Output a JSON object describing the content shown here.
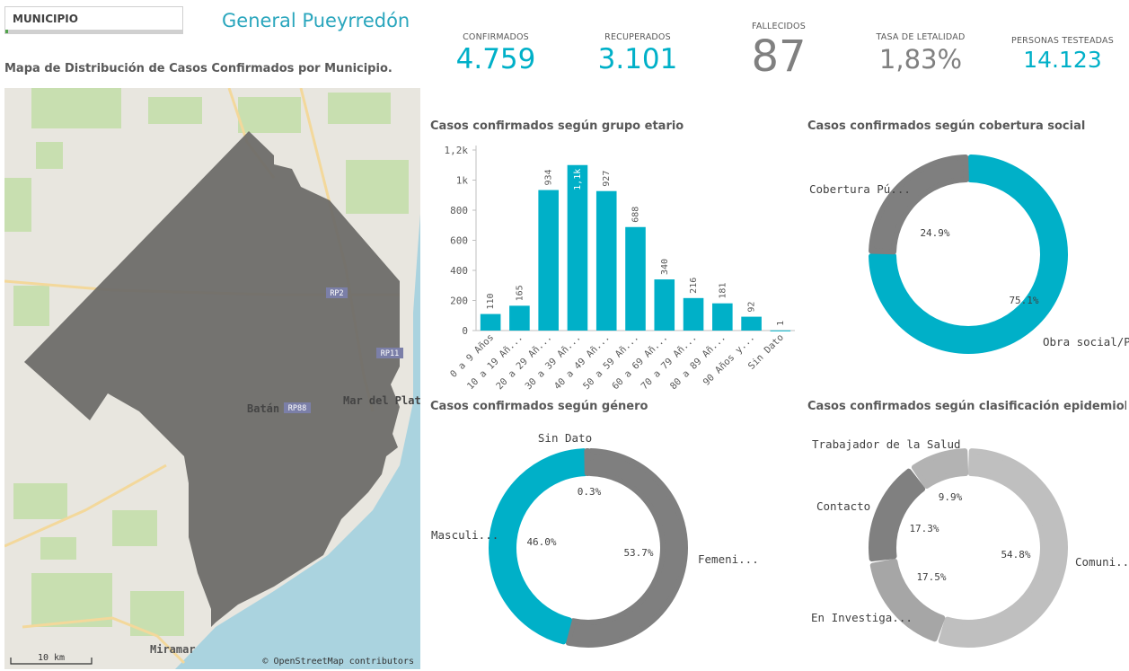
{
  "filter": {
    "label": "MUNICIPIO"
  },
  "municipio": "General Pueyrredón",
  "map": {
    "title": "Mapa de Distribución de Casos Confirmados por Municipio.",
    "labels": {
      "rp2": "RP2",
      "rp11": "RP11",
      "rp88": "RP88",
      "batan": "Batán",
      "mdp": "Mar del Plata",
      "miramar": "Miramar"
    },
    "scale": "10 km",
    "attribution": "© OpenStreetMap contributors"
  },
  "kpis": [
    {
      "title": "CONFIRMADOS",
      "value": "4.759"
    },
    {
      "title": "RECUPERADOS",
      "value": "3.101"
    },
    {
      "title": "FALLECIDOS",
      "value": "87"
    },
    {
      "title": "TASA DE LETALIDAD",
      "value": "1,83%"
    },
    {
      "title": "PERSONAS TESTEADAS",
      "value": "14.123"
    }
  ],
  "colors": {
    "teal": "#00b0c8",
    "darkgray": "#7f7f7f",
    "gray": "#a6a6a6",
    "lightgray": "#bfbfbf",
    "midgray": "#8c8c8c"
  },
  "chart_data": [
    {
      "type": "bar",
      "title": "Casos confirmados según grupo etario",
      "categories": [
        "0 a 9 Años",
        "10 a 19 Añ...",
        "20 a 29 Añ...",
        "30 a 39 Añ...",
        "40 a 49 Añ...",
        "50 a 59 Añ...",
        "60 a 69 Añ...",
        "70 a 79 Añ...",
        "80 a 89 Añ...",
        "90 Años y...",
        "Sin Dato"
      ],
      "values": [
        110,
        165,
        934,
        1100,
        927,
        688,
        340,
        216,
        181,
        92,
        1
      ],
      "data_labels": [
        "110",
        "165",
        "934",
        "1,1k",
        "927",
        "688",
        "340",
        "216",
        "181",
        "92",
        "1"
      ],
      "ylim": [
        0,
        1200
      ],
      "yticks": [
        "0",
        "200",
        "400",
        "600",
        "800",
        "1k",
        "1,2k"
      ],
      "ytick_values": [
        0,
        200,
        400,
        600,
        800,
        1000,
        1200
      ]
    },
    {
      "type": "pie",
      "title": "Casos confirmados según cobertura social",
      "slices": [
        {
          "label": "Obra social/P...",
          "value": 75.1,
          "pct": "75.1%",
          "color": "#00b0c8"
        },
        {
          "label": "Cobertura Pú...",
          "value": 24.9,
          "pct": "24.9%",
          "color": "#7f7f7f"
        }
      ]
    },
    {
      "type": "pie",
      "title": "Casos confirmados según género",
      "slices": [
        {
          "label": "Femeni...",
          "value": 53.7,
          "pct": "53.7%",
          "color": "#7f7f7f"
        },
        {
          "label": "Masculi...",
          "value": 46.0,
          "pct": "46.0%",
          "color": "#00b0c8"
        },
        {
          "label": "Sin Dato",
          "value": 0.3,
          "pct": "0.3%",
          "color": "#7f7f7f"
        }
      ]
    },
    {
      "type": "pie",
      "title": "Casos confirmados según clasificación epidemioló...",
      "slices": [
        {
          "label": "Comuni...",
          "value": 54.8,
          "pct": "54.8%",
          "color": "#bfbfbf"
        },
        {
          "label": "En Investiga...",
          "value": 17.5,
          "pct": "17.5%",
          "color": "#a6a6a6"
        },
        {
          "label": "Contacto",
          "value": 17.3,
          "pct": "17.3%",
          "color": "#808080"
        },
        {
          "label": "Trabajador de la Salud",
          "value": 9.9,
          "pct": "9.9%",
          "color": "#b3b3b3"
        }
      ]
    }
  ]
}
